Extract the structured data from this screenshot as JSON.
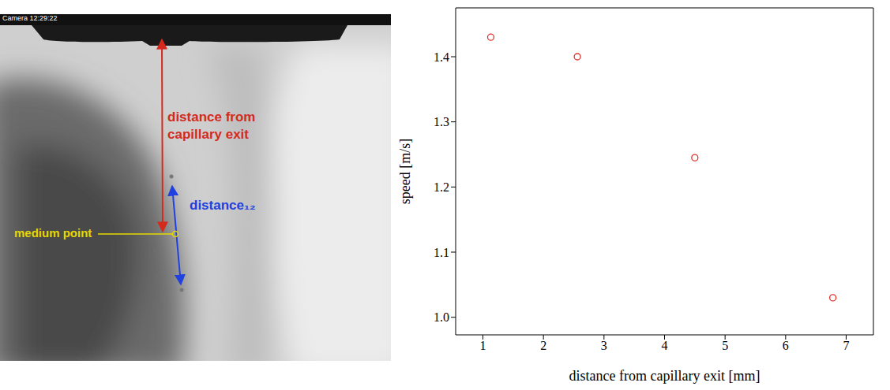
{
  "chart_data": {
    "type": "scatter",
    "x_label": "distance from capillary exit [mm]",
    "y_label": "speed [m/s]",
    "x": [
      1.13,
      2.56,
      4.5,
      6.78
    ],
    "values": [
      1.43,
      1.4,
      1.245,
      1.03
    ],
    "color": "#e0302a",
    "marker": "circle",
    "xlim": [
      0.55,
      7.45
    ],
    "xticks": [
      1,
      2,
      3,
      4,
      5,
      6,
      7
    ],
    "ylim": [
      0.973,
      1.475
    ],
    "yticks": [
      {
        "value": 1,
        "label": "1.0"
      },
      1.1,
      1.2,
      1.3,
      1.4
    ],
    "grid": false
  },
  "image": {
    "timestamp": "Camera 12:29:22",
    "annotations": [
      {
        "text": "distance from capillary exit",
        "color": "#d42a1e"
      },
      {
        "text": "distance₁₂",
        "color": "#2040e0"
      },
      {
        "text": "medium point",
        "color": "#e6d800"
      }
    ]
  }
}
